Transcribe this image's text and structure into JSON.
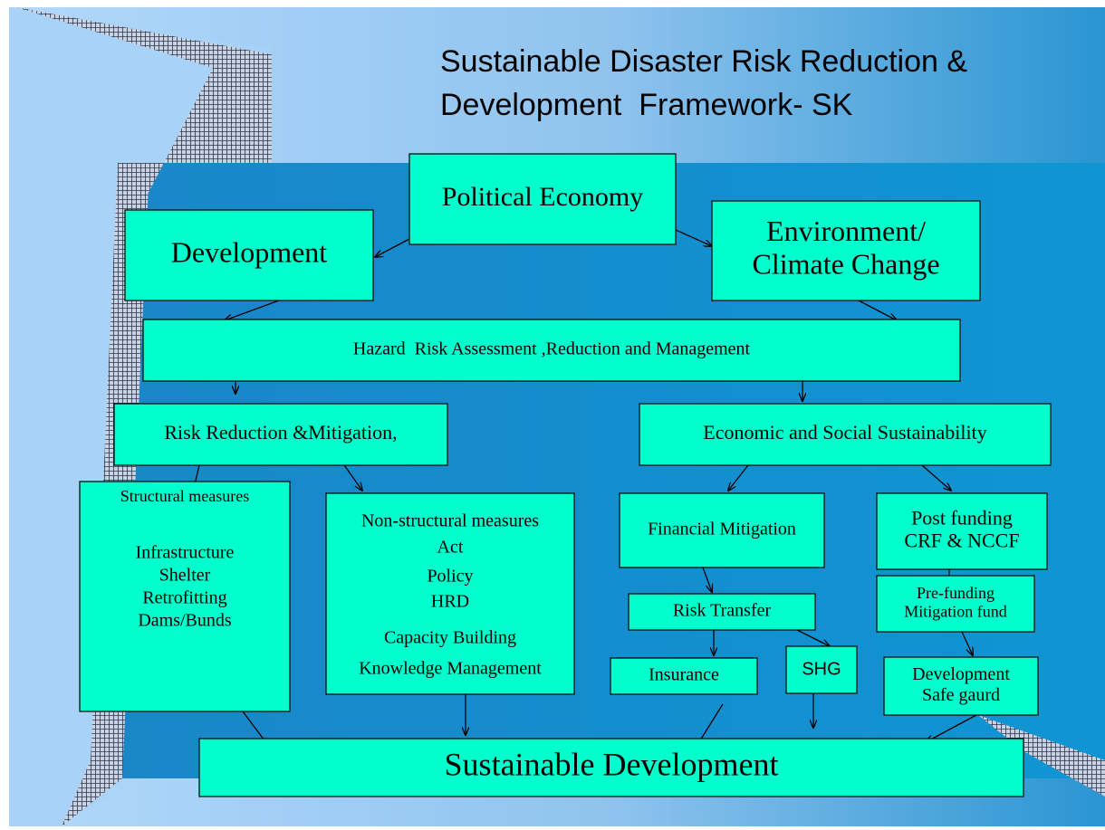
{
  "title": [
    "Sustainable Disaster Risk Reduction &",
    "Development  Framework- SK"
  ],
  "nodes": [
    {
      "label": [
        "Political Economy"
      ]
    },
    {
      "label": [
        "Development"
      ]
    },
    {
      "label": [
        "Environment/",
        "Climate Change"
      ]
    },
    {
      "label": [
        "Hazard  Risk Assessment ,Reduction and Management"
      ]
    },
    {
      "label": [
        "Risk Reduction &Mitigation,"
      ]
    },
    {
      "label": [
        "Economic and Social Sustainability"
      ]
    },
    {
      "label": [
        "Structural measures",
        "Infrastructure",
        "Shelter",
        "Retrofitting",
        "Dams/Bunds"
      ]
    },
    {
      "label": [
        "Non-structural measures",
        "Act",
        "Policy",
        "HRD",
        "Capacity Building",
        "Knowledge Management"
      ]
    },
    {
      "label": [
        "Financial Mitigation"
      ]
    },
    {
      "label": [
        "Post funding",
        "CRF & NCCF"
      ]
    },
    {
      "label": [
        "Pre-funding",
        "Mitigation fund"
      ]
    },
    {
      "label": [
        "Risk Transfer"
      ]
    },
    {
      "label": [
        "Insurance"
      ]
    },
    {
      "label": [
        "SHG"
      ]
    },
    {
      "label": [
        "Development",
        "Safe gaurd"
      ]
    },
    {
      "label": [
        "Sustainable Development"
      ]
    }
  ]
}
